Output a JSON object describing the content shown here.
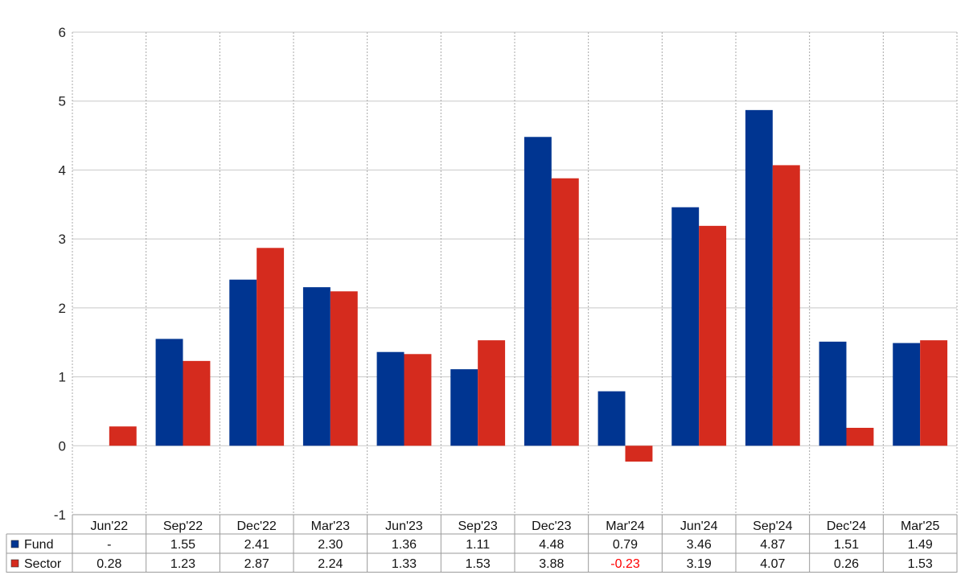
{
  "chart_data": {
    "type": "bar",
    "categories": [
      "Jun'22",
      "Sep'22",
      "Dec'22",
      "Mar'23",
      "Jun'23",
      "Sep'23",
      "Dec'23",
      "Mar'24",
      "Jun'24",
      "Sep'24",
      "Dec'24",
      "Mar'25"
    ],
    "series": [
      {
        "name": "Fund",
        "color": "#003591",
        "values": [
          null,
          1.55,
          2.41,
          2.3,
          1.36,
          1.11,
          4.48,
          0.79,
          3.46,
          4.87,
          1.51,
          1.49
        ],
        "labels": [
          "-",
          "1.55",
          "2.41",
          "2.30",
          "1.36",
          "1.11",
          "4.48",
          "0.79",
          "3.46",
          "4.87",
          "1.51",
          "1.49"
        ]
      },
      {
        "name": "Sector",
        "color": "#d52b1e",
        "values": [
          0.28,
          1.23,
          2.87,
          2.24,
          1.33,
          1.53,
          3.88,
          -0.23,
          3.19,
          4.07,
          0.26,
          1.53
        ],
        "labels": [
          "0.28",
          "1.23",
          "2.87",
          "2.24",
          "1.33",
          "1.53",
          "3.88",
          "-0.23",
          "3.19",
          "4.07",
          "0.26",
          "1.53"
        ]
      }
    ],
    "ylim": [
      -1,
      6
    ],
    "yticks": [
      "-1",
      "0",
      "1",
      "2",
      "3",
      "4",
      "5",
      "6"
    ],
    "grid": true,
    "legend": "data table below chart",
    "negative_label_color": "#ff0000"
  }
}
